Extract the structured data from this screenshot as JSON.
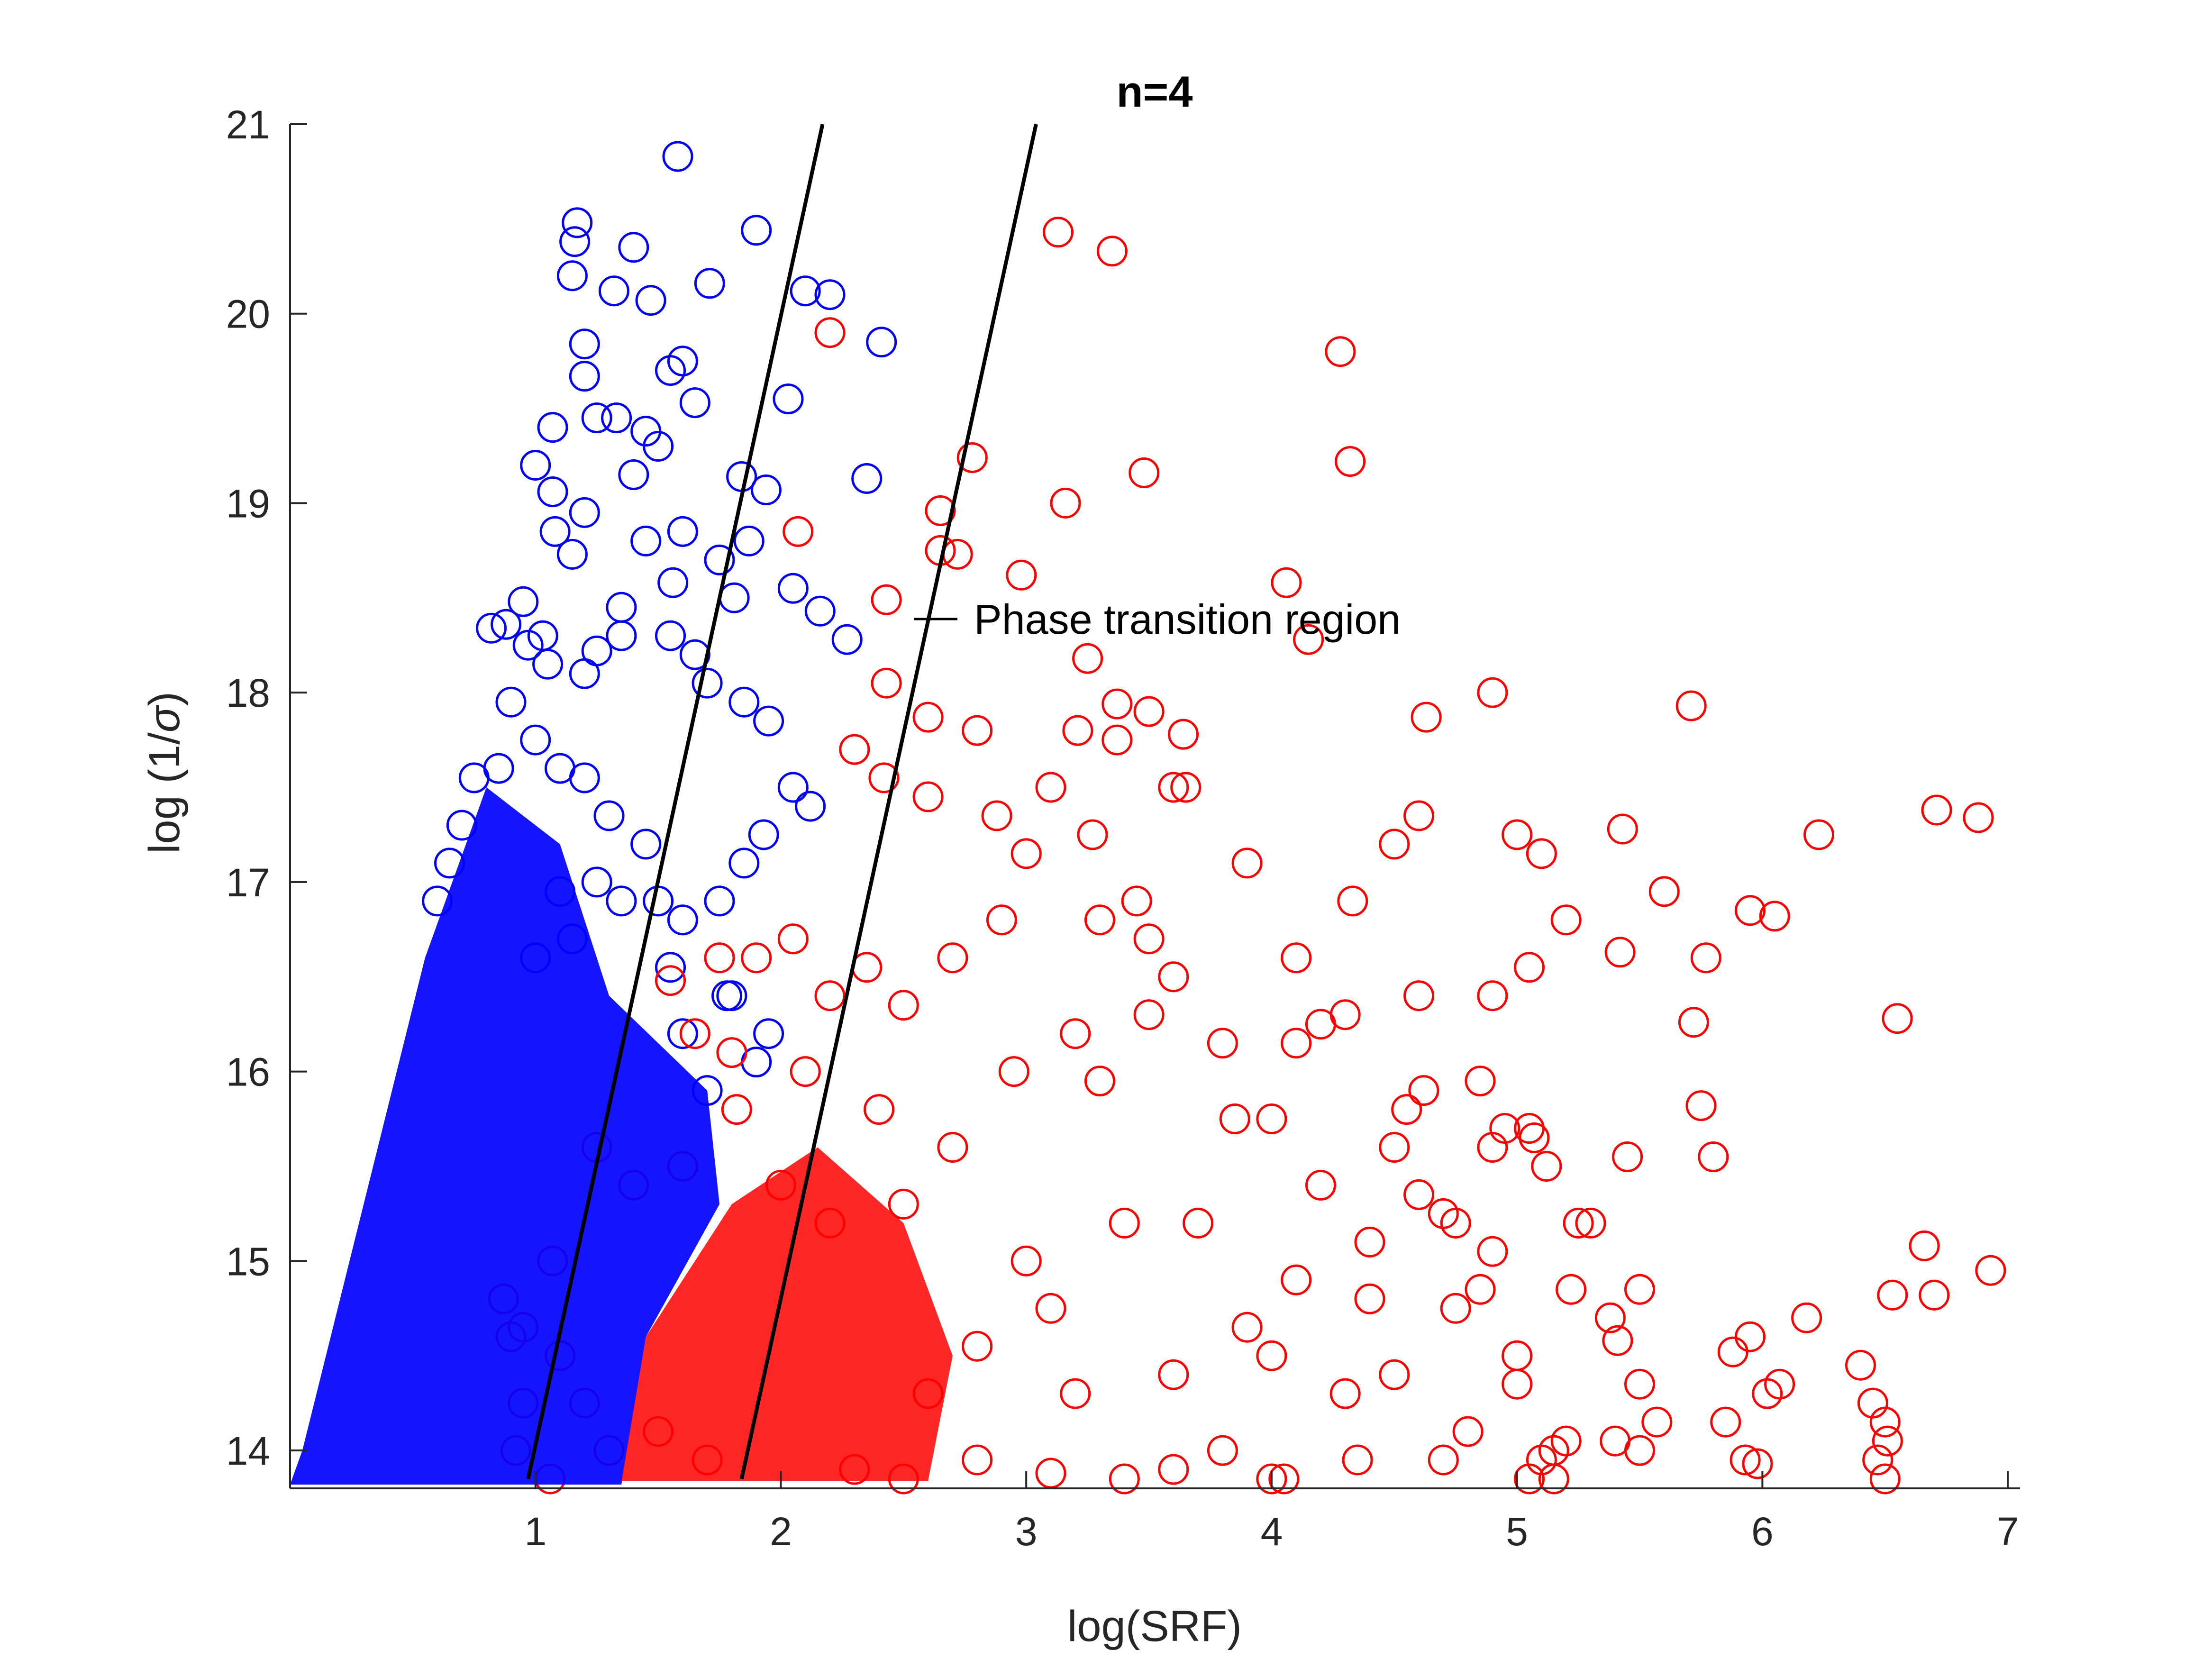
{
  "chart_data": {
    "type": "scatter",
    "title": "n=4",
    "xlabel": "log(SRF)",
    "ylabel_text": "log (1/",
    "ylabel_symbol": "σ",
    "ylabel_close": ")",
    "xlim": [
      0,
      7.05
    ],
    "ylim": [
      13.8,
      21
    ],
    "xticks": [
      "1",
      "2",
      "3",
      "4",
      "5",
      "6",
      "7"
    ],
    "yticks": [
      "14",
      "15",
      "16",
      "17",
      "18",
      "19",
      "20",
      "21"
    ],
    "grid": false,
    "colors": {
      "blue": "#0000ff",
      "red": "#ff0000",
      "lines": "#000000",
      "axis": "#262626"
    },
    "boundary_lines": [
      {
        "x": [
          0.97,
          2.17
        ],
        "y": [
          13.85,
          21
        ]
      },
      {
        "x": [
          1.84,
          3.04
        ],
        "y": [
          13.85,
          21
        ]
      }
    ],
    "annotation": {
      "text": "Phase transition region",
      "x": 2.55,
      "y": 18.38
    },
    "series": [
      {
        "color": "blue",
        "points": [
          [
            1.58,
            20.83
          ],
          [
            1.17,
            20.48
          ],
          [
            1.16,
            20.38
          ],
          [
            1.15,
            20.2
          ],
          [
            1.4,
            20.35
          ],
          [
            1.32,
            20.12
          ],
          [
            1.47,
            20.07
          ],
          [
            1.71,
            20.16
          ],
          [
            1.9,
            20.44
          ],
          [
            1.2,
            19.84
          ],
          [
            1.2,
            19.67
          ],
          [
            1.6,
            19.75
          ],
          [
            1.55,
            19.7
          ],
          [
            1.65,
            19.53
          ],
          [
            1.33,
            19.45
          ],
          [
            1.25,
            19.45
          ],
          [
            1.45,
            19.38
          ],
          [
            1.5,
            19.3
          ],
          [
            1.07,
            19.4
          ],
          [
            1.84,
            19.14
          ],
          [
            1.94,
            19.07
          ],
          [
            1.0,
            19.2
          ],
          [
            1.07,
            19.06
          ],
          [
            1.4,
            19.15
          ],
          [
            1.08,
            18.85
          ],
          [
            1.2,
            18.95
          ],
          [
            1.15,
            18.73
          ],
          [
            1.45,
            18.8
          ],
          [
            1.6,
            18.85
          ],
          [
            1.87,
            18.8
          ],
          [
            1.56,
            18.58
          ],
          [
            1.75,
            18.7
          ],
          [
            1.81,
            18.5
          ],
          [
            1.35,
            18.45
          ],
          [
            0.95,
            18.48
          ],
          [
            0.88,
            18.36
          ],
          [
            0.82,
            18.34
          ],
          [
            0.97,
            18.25
          ],
          [
            1.03,
            18.3
          ],
          [
            1.05,
            18.15
          ],
          [
            1.2,
            18.1
          ],
          [
            1.25,
            18.22
          ],
          [
            1.35,
            18.3
          ],
          [
            1.55,
            18.3
          ],
          [
            1.65,
            18.2
          ],
          [
            1.7,
            18.05
          ],
          [
            1.85,
            17.95
          ],
          [
            1.95,
            17.85
          ],
          [
            2.05,
            17.5
          ],
          [
            2.12,
            17.4
          ],
          [
            1.93,
            17.25
          ],
          [
            1.85,
            17.1
          ],
          [
            1.75,
            16.9
          ],
          [
            1.6,
            16.8
          ],
          [
            1.5,
            16.9
          ],
          [
            1.45,
            17.2
          ],
          [
            1.3,
            17.35
          ],
          [
            1.2,
            17.55
          ],
          [
            1.1,
            17.6
          ],
          [
            1.0,
            17.75
          ],
          [
            0.9,
            17.95
          ],
          [
            0.85,
            17.6
          ],
          [
            0.75,
            17.55
          ],
          [
            0.7,
            17.3
          ],
          [
            0.65,
            17.1
          ],
          [
            0.6,
            16.9
          ],
          [
            1.25,
            17.0
          ],
          [
            1.35,
            16.9
          ],
          [
            1.15,
            16.7
          ],
          [
            1.0,
            16.6
          ],
          [
            1.1,
            16.95
          ],
          [
            1.55,
            16.55
          ],
          [
            1.8,
            16.4
          ],
          [
            1.95,
            16.2
          ],
          [
            2.05,
            18.55
          ],
          [
            2.16,
            18.43
          ],
          [
            2.27,
            18.28
          ],
          [
            2.35,
            19.13
          ],
          [
            2.41,
            19.85
          ],
          [
            2.1,
            20.12
          ],
          [
            2.2,
            20.1
          ],
          [
            2.03,
            19.55
          ],
          [
            1.78,
            16.4
          ],
          [
            1.9,
            16.05
          ],
          [
            1.7,
            15.9
          ],
          [
            1.6,
            16.2
          ]
        ]
      },
      {
        "color": "red",
        "points": [
          [
            2.2,
            19.9
          ],
          [
            3.13,
            20.43
          ],
          [
            3.35,
            20.33
          ],
          [
            4.28,
            19.8
          ],
          [
            4.32,
            19.22
          ],
          [
            3.48,
            19.16
          ],
          [
            3.16,
            19.0
          ],
          [
            2.78,
            19.24
          ],
          [
            2.65,
            18.96
          ],
          [
            2.65,
            18.75
          ],
          [
            2.72,
            18.73
          ],
          [
            2.98,
            18.62
          ],
          [
            2.07,
            18.85
          ],
          [
            2.43,
            18.49
          ],
          [
            4.06,
            18.58
          ],
          [
            4.15,
            18.28
          ],
          [
            3.25,
            18.18
          ],
          [
            2.43,
            18.05
          ],
          [
            2.6,
            17.87
          ],
          [
            3.37,
            17.94
          ],
          [
            3.5,
            17.9
          ],
          [
            3.37,
            17.75
          ],
          [
            3.21,
            17.8
          ],
          [
            3.64,
            17.78
          ],
          [
            2.8,
            17.8
          ],
          [
            4.9,
            18.0
          ],
          [
            4.63,
            17.87
          ],
          [
            5.71,
            17.93
          ],
          [
            2.3,
            17.7
          ],
          [
            2.42,
            17.55
          ],
          [
            2.6,
            17.45
          ],
          [
            3.1,
            17.5
          ],
          [
            3.6,
            17.5
          ],
          [
            3.65,
            17.5
          ],
          [
            2.88,
            17.35
          ],
          [
            5.0,
            17.25
          ],
          [
            5.1,
            17.15
          ],
          [
            5.43,
            17.28
          ],
          [
            6.23,
            17.25
          ],
          [
            6.71,
            17.38
          ],
          [
            6.88,
            17.34
          ],
          [
            4.5,
            17.2
          ],
          [
            4.6,
            17.35
          ],
          [
            3.9,
            17.1
          ],
          [
            3.0,
            17.15
          ],
          [
            3.27,
            17.25
          ],
          [
            4.33,
            16.9
          ],
          [
            5.2,
            16.8
          ],
          [
            5.42,
            16.63
          ],
          [
            5.6,
            16.95
          ],
          [
            5.95,
            16.85
          ],
          [
            6.05,
            16.82
          ],
          [
            5.77,
            16.6
          ],
          [
            5.05,
            16.55
          ],
          [
            4.9,
            16.4
          ],
          [
            4.6,
            16.4
          ],
          [
            4.1,
            16.6
          ],
          [
            3.6,
            16.5
          ],
          [
            3.5,
            16.7
          ],
          [
            3.45,
            16.9
          ],
          [
            3.3,
            16.8
          ],
          [
            2.9,
            16.8
          ],
          [
            2.7,
            16.6
          ],
          [
            5.72,
            16.26
          ],
          [
            6.55,
            16.28
          ],
          [
            4.3,
            16.3
          ],
          [
            4.2,
            16.25
          ],
          [
            4.1,
            16.15
          ],
          [
            3.8,
            16.15
          ],
          [
            3.5,
            16.3
          ],
          [
            3.2,
            16.2
          ],
          [
            4.85,
            15.95
          ],
          [
            4.62,
            15.9
          ],
          [
            4.55,
            15.8
          ],
          [
            4.0,
            15.75
          ],
          [
            3.85,
            15.75
          ],
          [
            5.45,
            15.55
          ],
          [
            5.75,
            15.82
          ],
          [
            5.8,
            15.55
          ],
          [
            5.05,
            15.7
          ],
          [
            5.07,
            15.65
          ],
          [
            5.12,
            15.5
          ],
          [
            4.95,
            15.7
          ],
          [
            4.9,
            15.6
          ],
          [
            4.5,
            15.6
          ],
          [
            4.6,
            15.35
          ],
          [
            4.7,
            15.25
          ],
          [
            4.75,
            15.2
          ],
          [
            4.9,
            15.05
          ],
          [
            5.25,
            15.2
          ],
          [
            5.3,
            15.2
          ],
          [
            6.66,
            15.08
          ],
          [
            6.93,
            14.95
          ],
          [
            6.53,
            14.82
          ],
          [
            6.7,
            14.82
          ],
          [
            6.18,
            14.7
          ],
          [
            5.95,
            14.6
          ],
          [
            5.88,
            14.52
          ],
          [
            6.07,
            14.35
          ],
          [
            6.02,
            14.3
          ],
          [
            6.4,
            14.45
          ],
          [
            6.45,
            14.25
          ],
          [
            6.5,
            14.15
          ],
          [
            6.51,
            14.05
          ],
          [
            6.47,
            13.95
          ],
          [
            6.5,
            13.85
          ],
          [
            5.98,
            13.93
          ],
          [
            5.93,
            13.95
          ],
          [
            5.85,
            14.15
          ],
          [
            5.5,
            14.35
          ],
          [
            5.57,
            14.15
          ],
          [
            5.5,
            14.0
          ],
          [
            5.4,
            14.05
          ],
          [
            5.2,
            14.05
          ],
          [
            5.15,
            14.0
          ],
          [
            5.1,
            13.95
          ],
          [
            5.05,
            13.85
          ],
          [
            5.15,
            13.85
          ],
          [
            4.8,
            14.1
          ],
          [
            4.7,
            13.95
          ],
          [
            5.38,
            14.7
          ],
          [
            5.41,
            14.58
          ],
          [
            5.22,
            14.85
          ],
          [
            5.5,
            14.85
          ],
          [
            5.0,
            14.5
          ],
          [
            5.0,
            14.35
          ],
          [
            4.75,
            14.75
          ],
          [
            4.85,
            14.85
          ],
          [
            3.0,
            15.0
          ],
          [
            3.4,
            15.2
          ],
          [
            3.7,
            15.2
          ],
          [
            4.2,
            15.4
          ],
          [
            4.4,
            15.1
          ],
          [
            4.0,
            14.5
          ],
          [
            3.6,
            14.4
          ],
          [
            3.2,
            14.3
          ],
          [
            3.8,
            14.0
          ],
          [
            4.3,
            14.3
          ],
          [
            4.5,
            14.4
          ],
          [
            4.4,
            14.8
          ],
          [
            4.1,
            14.9
          ],
          [
            3.9,
            14.65
          ],
          [
            2.6,
            14.3
          ],
          [
            2.8,
            14.55
          ],
          [
            3.1,
            14.75
          ],
          [
            2.5,
            15.3
          ],
          [
            2.7,
            15.6
          ],
          [
            2.4,
            15.8
          ],
          [
            2.95,
            16.0
          ],
          [
            3.3,
            15.95
          ],
          [
            2.35,
            16.55
          ],
          [
            2.5,
            16.35
          ],
          [
            2.2,
            16.4
          ],
          [
            2.05,
            16.7
          ],
          [
            1.9,
            16.6
          ],
          [
            1.75,
            16.6
          ],
          [
            1.55,
            16.48
          ],
          [
            1.65,
            16.2
          ],
          [
            2.1,
            16.0
          ],
          [
            1.8,
            16.1
          ],
          [
            1.82,
            15.8
          ],
          [
            2.0,
            15.4
          ],
          [
            2.2,
            15.2
          ],
          [
            1.4,
            15.4
          ],
          [
            1.6,
            15.5
          ],
          [
            1.25,
            15.6
          ],
          [
            0.87,
            14.8
          ],
          [
            0.9,
            14.6
          ],
          [
            0.95,
            14.65
          ],
          [
            1.07,
            15.0
          ],
          [
            1.1,
            14.5
          ],
          [
            0.95,
            14.25
          ],
          [
            0.92,
            14.0
          ],
          [
            1.06,
            13.85
          ],
          [
            1.3,
            14.0
          ],
          [
            1.2,
            14.25
          ],
          [
            1.5,
            14.1
          ],
          [
            1.7,
            13.95
          ],
          [
            2.3,
            13.9
          ],
          [
            2.5,
            13.85
          ],
          [
            2.8,
            13.95
          ],
          [
            3.1,
            13.88
          ],
          [
            3.4,
            13.85
          ],
          [
            3.6,
            13.9
          ],
          [
            4.0,
            13.85
          ],
          [
            4.05,
            13.85
          ],
          [
            4.35,
            13.95
          ]
        ]
      }
    ]
  }
}
